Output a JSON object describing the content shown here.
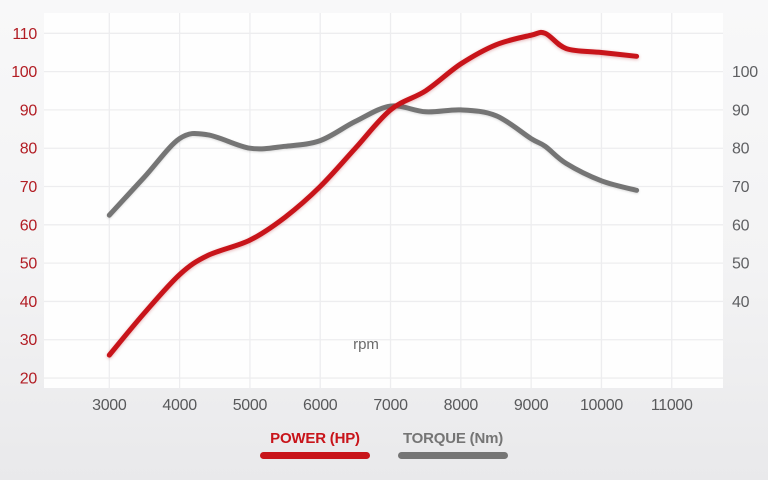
{
  "chart_data": {
    "type": "line",
    "title": "",
    "xlabel": "rpm",
    "x": [
      3000,
      3500,
      4000,
      4400,
      5000,
      5500,
      6000,
      6500,
      7000,
      7500,
      8000,
      8500,
      9000,
      9200,
      9500,
      10000,
      10500
    ],
    "series": [
      {
        "name": "POWER (HP)",
        "color": "#c8141a",
        "values": [
          26,
          37,
          47,
          52,
          56,
          62,
          70,
          80,
          90,
          95,
          102,
          107,
          109.5,
          110,
          106,
          105,
          104
        ]
      },
      {
        "name": "TORQUE (Nm)",
        "color": "#757575",
        "values": [
          62.5,
          72.5,
          82.5,
          83.5,
          80,
          80.5,
          82,
          87,
          91,
          89.5,
          90,
          88.5,
          82.5,
          80.5,
          76,
          71.5,
          69
        ]
      }
    ],
    "x_ticks": [
      3000,
      4000,
      5000,
      6000,
      7000,
      8000,
      9000,
      10000,
      11000
    ],
    "y_left_ticks": [
      110,
      100,
      90,
      80,
      70,
      60,
      50,
      40,
      30,
      20
    ],
    "y_right_ticks": [
      100,
      90,
      80,
      70,
      60,
      50,
      40
    ],
    "grid": true,
    "legend_position": "bottom"
  },
  "colors": {
    "power_line": "#c8141a",
    "torque_line": "#757575",
    "axis_label_red": "#b21d24",
    "axis_label_gray": "#5f6063",
    "x_label_gray": "#58595b",
    "rpm_label_gray": "#6b6b6b",
    "gridline": "#ededef",
    "plot_background": "#fefefe"
  }
}
